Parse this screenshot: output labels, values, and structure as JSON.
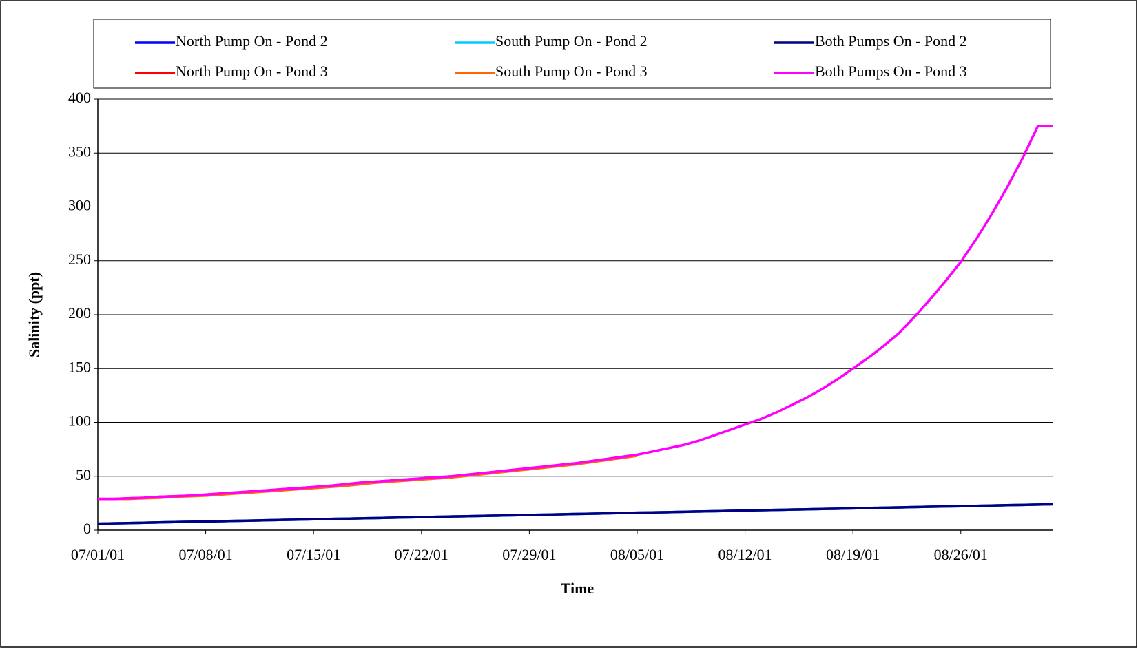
{
  "chart_data": {
    "type": "line",
    "x_label": "Time",
    "y_label": "Salinity (ppt)",
    "x": [
      "07/01/01",
      "07/02/01",
      "07/03/01",
      "07/04/01",
      "07/05/01",
      "07/06/01",
      "07/07/01",
      "07/08/01",
      "07/09/01",
      "07/10/01",
      "07/11/01",
      "07/12/01",
      "07/13/01",
      "07/14/01",
      "07/15/01",
      "07/16/01",
      "07/17/01",
      "07/18/01",
      "07/19/01",
      "07/20/01",
      "07/21/01",
      "07/22/01",
      "07/23/01",
      "07/24/01",
      "07/25/01",
      "07/26/01",
      "07/27/01",
      "07/28/01",
      "07/29/01",
      "07/30/01",
      "07/31/01",
      "08/01/01",
      "08/02/01",
      "08/03/01",
      "08/04/01",
      "08/05/01",
      "08/06/01",
      "08/07/01",
      "08/08/01",
      "08/09/01",
      "08/10/01",
      "08/11/01",
      "08/12/01",
      "08/13/01",
      "08/14/01",
      "08/15/01",
      "08/16/01",
      "08/17/01",
      "08/18/01",
      "08/19/01",
      "08/20/01",
      "08/21/01",
      "08/22/01",
      "08/23/01",
      "08/24/01",
      "08/25/01",
      "08/26/01",
      "08/27/01",
      "08/28/01",
      "08/29/01",
      "08/30/01",
      "08/31/01",
      "09/01/01"
    ],
    "series": [
      {
        "name": "North Pump On - Pond 2",
        "color": "#0000ff",
        "values": [
          6,
          6.3,
          6.6,
          6.9,
          7.2,
          7.5,
          7.7,
          8,
          8.3,
          8.6,
          8.9,
          9.2,
          9.5,
          9.8,
          10.1,
          10.4,
          10.6,
          10.9,
          11.2,
          11.5,
          11.8,
          12.1,
          12.4,
          12.7,
          13,
          13.3,
          13.5,
          13.8,
          14.1,
          14.4,
          14.7,
          15,
          15.3,
          15.6,
          15.9,
          16.2,
          16.4,
          16.7,
          17,
          17.3,
          17.6,
          17.9,
          18.2,
          18.5,
          18.8,
          19.1,
          19.3,
          19.6,
          19.9,
          20.2,
          20.5,
          20.8,
          21.1,
          21.4,
          21.7,
          22,
          22.2,
          22.5,
          22.8,
          23.1,
          23.4,
          23.7,
          24
        ]
      },
      {
        "name": "South Pump On - Pond 2",
        "color": "#00ccff",
        "values": [
          6,
          6.3,
          6.6,
          6.9,
          7.2,
          7.5,
          7.7,
          8,
          8.3,
          8.6,
          8.9,
          9.2,
          9.5,
          9.8,
          10.1,
          10.4,
          10.6,
          10.9,
          11.2,
          11.5,
          11.8,
          12.1,
          12.4,
          12.7,
          13,
          13.3,
          13.5,
          13.8,
          14.1,
          14.4,
          14.7,
          15,
          15.3,
          15.6,
          15.9,
          16.2,
          16.4,
          16.7,
          17,
          17.3,
          17.6,
          17.9,
          18.2,
          18.5,
          18.8,
          19.1,
          19.3,
          19.6,
          19.9,
          20.2,
          20.5,
          20.8,
          21.1,
          21.4,
          21.7,
          22,
          22.2,
          22.5,
          22.8,
          23.1,
          23.4,
          23.7,
          24
        ]
      },
      {
        "name": "Both Pumps On - Pond 2",
        "color": "#000080",
        "values": [
          6,
          6.3,
          6.6,
          6.9,
          7.2,
          7.5,
          7.7,
          8,
          8.3,
          8.6,
          8.9,
          9.2,
          9.5,
          9.8,
          10.1,
          10.4,
          10.6,
          10.9,
          11.2,
          11.5,
          11.8,
          12.1,
          12.4,
          12.7,
          13,
          13.3,
          13.5,
          13.8,
          14.1,
          14.4,
          14.7,
          15,
          15.3,
          15.6,
          15.9,
          16.2,
          16.4,
          16.7,
          17,
          17.3,
          17.6,
          17.9,
          18.2,
          18.5,
          18.8,
          19.1,
          19.3,
          19.6,
          19.9,
          20.2,
          20.5,
          20.8,
          21.1,
          21.4,
          21.7,
          22,
          22.2,
          22.5,
          22.8,
          23.1,
          23.4,
          23.7,
          24
        ]
      },
      {
        "name": "North Pump On - Pond 3",
        "color": "#ff0000",
        "values": [
          29,
          29,
          29.5,
          30,
          31,
          31.5,
          32,
          33,
          34,
          35,
          36,
          37,
          38,
          39,
          40,
          41,
          42.5,
          44,
          45,
          46,
          47,
          48,
          49,
          50,
          51.5,
          53,
          54.5,
          56,
          57.5,
          59,
          60.5,
          62,
          64,
          66,
          68,
          70,
          null,
          null,
          null,
          null,
          null,
          null,
          null,
          null,
          null,
          null,
          null,
          null,
          null,
          null,
          null,
          null,
          null,
          null,
          null,
          null,
          null,
          null,
          null,
          null,
          null,
          null,
          null
        ]
      },
      {
        "name": "South Pump On - Pond 3",
        "color": "#ff6600",
        "values": [
          29,
          29,
          29,
          29.5,
          30,
          31,
          31.5,
          32,
          33,
          34,
          35,
          36,
          37,
          38,
          39,
          40,
          41,
          42.5,
          44,
          45,
          46,
          47,
          48,
          49,
          50.5,
          52,
          53.5,
          55,
          56.5,
          58,
          59.5,
          61,
          63,
          65,
          67,
          69,
          null,
          null,
          null,
          null,
          null,
          null,
          null,
          null,
          null,
          null,
          null,
          null,
          null,
          null,
          null,
          null,
          null,
          null,
          null,
          null,
          null,
          null,
          null,
          null,
          null,
          null,
          null
        ]
      },
      {
        "name": "Both Pumps On - Pond 3",
        "color": "#ff00ff",
        "values": [
          29,
          29,
          29.5,
          30,
          31,
          31.5,
          32,
          33,
          34,
          35,
          36,
          37,
          38,
          39,
          40,
          41,
          42.5,
          44,
          45,
          46,
          47,
          48,
          49,
          50,
          51.5,
          53,
          54.5,
          56,
          57.5,
          59,
          60.5,
          62,
          64,
          66,
          68,
          70,
          73,
          76,
          79,
          83,
          88,
          93,
          98,
          103,
          109,
          116,
          123,
          131,
          140,
          150,
          160,
          171,
          183,
          198,
          214,
          231,
          249,
          270,
          293,
          318,
          345,
          375,
          375
        ]
      }
    ],
    "xlim": [
      "07/01/01",
      "09/01/01"
    ],
    "xticks": [
      "07/01/01",
      "07/08/01",
      "07/15/01",
      "07/22/01",
      "07/29/01",
      "08/05/01",
      "08/12/01",
      "08/19/01",
      "08/26/01"
    ],
    "ylim": [
      0,
      400
    ],
    "yticks": [
      0,
      50,
      100,
      150,
      200,
      250,
      300,
      350,
      400
    ],
    "grid": true,
    "legend": "top"
  }
}
